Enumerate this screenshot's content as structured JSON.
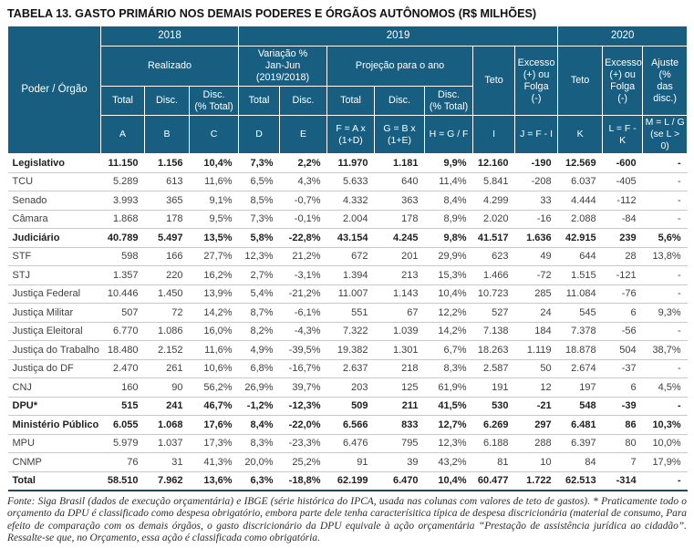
{
  "page": {
    "title": "TABELA 13. GASTO PRIMÁRIO NOS DEMAIS PODERES E ÓRGÃOS AUTÔNOMOS (R$ MILHÕES)",
    "footnote": "Fonte: Siga Brasil (dados de execução orçamentária) e IBGE (série histórica do IPCA, usada nas colunas com valores de teto de gastos). * Praticamente todo o orçamento da DPU é classificado como despesa obrigatório, embora parte dele tenha caracterísitica típica de despesa discricionária (material de consumo, Para efeito de comparação com os demais órgãos, o gasto discricionário da DPU equivale à ação orçamentária “Prestação de assistência jurídica ao cidadão”. Ressalte-se que, no Orçamento, essa ação é classificada como obrigatória."
  },
  "colors": {
    "header_bg": "#175E80",
    "header_text": "#FFFFFF",
    "row_border": "#C9C9C9",
    "section_border": "#5A5A5A",
    "bottom_border": "#24465F",
    "text": "#404040",
    "bold_text": "#1F1F1F"
  },
  "table": {
    "corner_label": "Poder / Órgão",
    "year_row": [
      {
        "label": "2018",
        "span": 3
      },
      {
        "label": "2019",
        "span": 7
      },
      {
        "label": "2020",
        "span": 3
      }
    ],
    "group_row": [
      {
        "label": "Realizado"
      },
      {
        "label": "Variação %\nJan-Jun\n(2019/2018)"
      },
      {
        "label": "Projeção para o ano"
      },
      {
        "label": "Teto"
      },
      {
        "label": "Excesso\n(+) ou\nFolga\n(-)"
      },
      {
        "label": "Teto"
      },
      {
        "label": "Excesso\n(+) ou\nFolga\n(-)"
      },
      {
        "label": "Ajuste (%\ndas disc.)"
      }
    ],
    "sub_row": [
      "Total",
      "Disc.",
      "Disc.\n(% Total)",
      "Total",
      "Disc.",
      "Total",
      "Disc.",
      "Disc.\n(% Total)"
    ],
    "formula_row": [
      "A",
      "B",
      "C",
      "D",
      "E",
      "F = A x\n(1+D)",
      "G = B x\n(1+E)",
      "H = G / F",
      "I",
      "J = F - I",
      "K",
      "L = F - K",
      "M = L / G\n(se L > 0)"
    ],
    "rows": [
      {
        "label": "Legislativo",
        "bold": true,
        "values": [
          "11.150",
          "1.156",
          "10,4%",
          "7,3%",
          "2,2%",
          "11.970",
          "1.181",
          "9,9%",
          "12.160",
          "-190",
          "12.569",
          "-600",
          "-"
        ]
      },
      {
        "label": "TCU",
        "bold": false,
        "values": [
          "5.289",
          "613",
          "11,6%",
          "6,5%",
          "4,3%",
          "5.633",
          "640",
          "11,4%",
          "5.841",
          "-208",
          "6.037",
          "-405",
          "-"
        ]
      },
      {
        "label": "Senado",
        "bold": false,
        "values": [
          "3.993",
          "365",
          "9,1%",
          "8,5%",
          "-0,7%",
          "4.332",
          "363",
          "8,4%",
          "4.299",
          "33",
          "4.444",
          "-112",
          "-"
        ]
      },
      {
        "label": "Câmara",
        "bold": false,
        "values": [
          "1.868",
          "178",
          "9,5%",
          "7,3%",
          "-0,1%",
          "2.004",
          "178",
          "8,9%",
          "2.020",
          "-16",
          "2.088",
          "-84",
          "-"
        ]
      },
      {
        "label": "Judiciário",
        "bold": true,
        "values": [
          "40.789",
          "5.497",
          "13,5%",
          "5,8%",
          "-22,8%",
          "43.154",
          "4.245",
          "9,8%",
          "41.517",
          "1.636",
          "42.915",
          "239",
          "5,6%"
        ]
      },
      {
        "label": "STF",
        "bold": false,
        "values": [
          "598",
          "166",
          "27,7%",
          "12,3%",
          "21,2%",
          "672",
          "201",
          "29,9%",
          "623",
          "49",
          "644",
          "28",
          "13,8%"
        ]
      },
      {
        "label": "STJ",
        "bold": false,
        "values": [
          "1.357",
          "220",
          "16,2%",
          "2,7%",
          "-3,1%",
          "1.394",
          "213",
          "15,3%",
          "1.466",
          "-72",
          "1.515",
          "-121",
          "-"
        ]
      },
      {
        "label": "Justiça Federal",
        "bold": false,
        "values": [
          "10.446",
          "1.450",
          "13,9%",
          "5,4%",
          "-21,2%",
          "11.007",
          "1.143",
          "10,4%",
          "10.723",
          "285",
          "11.084",
          "-76",
          "-"
        ]
      },
      {
        "label": "Justiça Militar",
        "bold": false,
        "values": [
          "507",
          "72",
          "14,2%",
          "8,7%",
          "-6,1%",
          "551",
          "67",
          "12,2%",
          "527",
          "24",
          "545",
          "6",
          "9,3%"
        ]
      },
      {
        "label": "Justiça Eleitoral",
        "bold": false,
        "values": [
          "6.770",
          "1.086",
          "16,0%",
          "8,2%",
          "-4,3%",
          "7.322",
          "1.039",
          "14,2%",
          "7.138",
          "184",
          "7.378",
          "-56",
          "-"
        ]
      },
      {
        "label": "Justiça do Trabalho",
        "bold": false,
        "values": [
          "18.480",
          "2.152",
          "11,6%",
          "4,9%",
          "-39,5%",
          "19.382",
          "1.301",
          "6,7%",
          "18.263",
          "1.119",
          "18.878",
          "504",
          "38,7%"
        ]
      },
      {
        "label": "Justiça do DF",
        "bold": false,
        "values": [
          "2.470",
          "261",
          "10,6%",
          "6,8%",
          "-16,7%",
          "2.637",
          "218",
          "8,3%",
          "2.587",
          "50",
          "2.674",
          "-37",
          "-"
        ]
      },
      {
        "label": "CNJ",
        "bold": false,
        "values": [
          "160",
          "90",
          "56,2%",
          "26,9%",
          "39,7%",
          "203",
          "125",
          "61,9%",
          "191",
          "12",
          "197",
          "6",
          "4,5%"
        ]
      },
      {
        "label": "DPU*",
        "bold": true,
        "values": [
          "515",
          "241",
          "46,7%",
          "-1,2%",
          "-12,3%",
          "509",
          "211",
          "41,5%",
          "530",
          "-21",
          "548",
          "-39",
          "-"
        ]
      },
      {
        "label": "Ministério Público",
        "bold": true,
        "values": [
          "6.055",
          "1.068",
          "17,6%",
          "8,4%",
          "-22,0%",
          "6.566",
          "833",
          "12,7%",
          "6.269",
          "297",
          "6.481",
          "86",
          "10,3%"
        ]
      },
      {
        "label": "MPU",
        "bold": false,
        "values": [
          "5.979",
          "1.037",
          "17,3%",
          "8,3%",
          "-23,3%",
          "6.476",
          "795",
          "12,3%",
          "6.188",
          "288",
          "6.397",
          "80",
          "10,0%"
        ]
      },
      {
        "label": "CNMP",
        "bold": false,
        "values": [
          "76",
          "31",
          "41,3%",
          "20,0%",
          "25,2%",
          "91",
          "39",
          "43,2%",
          "81",
          "10",
          "84",
          "7",
          "17,9%"
        ]
      },
      {
        "label": "Total",
        "bold": true,
        "values": [
          "58.510",
          "7.962",
          "13,6%",
          "6,3%",
          "-18,8%",
          "62.199",
          "6.470",
          "10,4%",
          "60.477",
          "1.722",
          "62.513",
          "-314",
          "-"
        ]
      }
    ]
  }
}
